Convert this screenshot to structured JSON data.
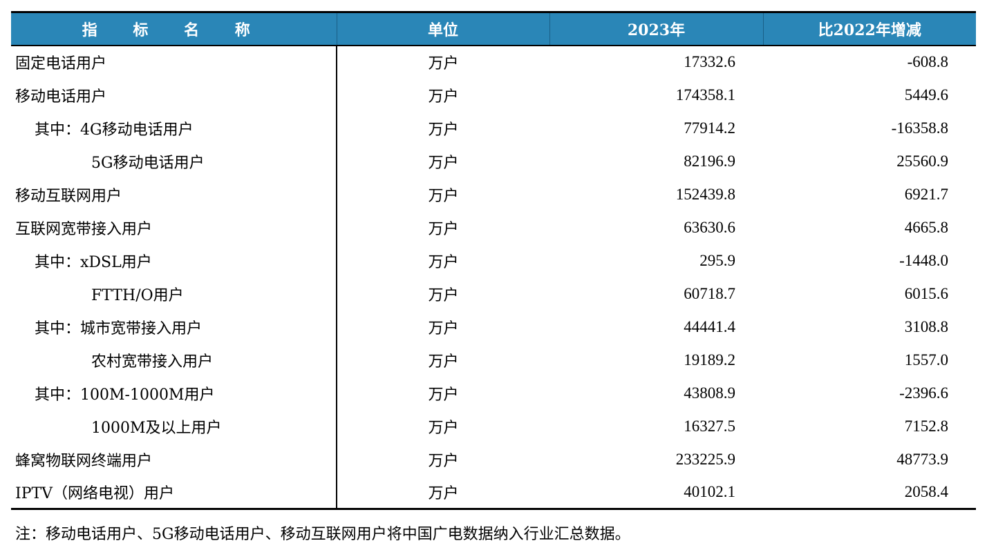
{
  "table": {
    "headers": {
      "name": "指 标 名 称",
      "unit": "单位",
      "year": "2023年",
      "diff": "比2022年增减"
    },
    "rows": [
      {
        "name": "固定电话用户",
        "indent": 0,
        "unit": "万户",
        "v2023": "17332.6",
        "diff": "-608.8"
      },
      {
        "name": "移动电话用户",
        "indent": 0,
        "unit": "万户",
        "v2023": "174358.1",
        "diff": "5449.6"
      },
      {
        "name": "其中：4G移动电话用户",
        "indent": 1,
        "unit": "万户",
        "v2023": "77914.2",
        "diff": "-16358.8"
      },
      {
        "name": "5G移动电话用户",
        "indent": 2,
        "unit": "万户",
        "v2023": "82196.9",
        "diff": "25560.9"
      },
      {
        "name": "移动互联网用户",
        "indent": 0,
        "unit": "万户",
        "v2023": "152439.8",
        "diff": "6921.7"
      },
      {
        "name": "互联网宽带接入用户",
        "indent": 0,
        "unit": "万户",
        "v2023": "63630.6",
        "diff": "4665.8"
      },
      {
        "name": "其中：xDSL用户",
        "indent": 1,
        "unit": "万户",
        "v2023": "295.9",
        "diff": "-1448.0"
      },
      {
        "name": "FTTH/O用户",
        "indent": 2,
        "unit": "万户",
        "v2023": "60718.7",
        "diff": "6015.6"
      },
      {
        "name": "其中：城市宽带接入用户",
        "indent": 1,
        "unit": "万户",
        "v2023": "44441.4",
        "diff": "3108.8"
      },
      {
        "name": "农村宽带接入用户",
        "indent": 2,
        "unit": "万户",
        "v2023": "19189.2",
        "diff": "1557.0"
      },
      {
        "name": "其中：100M-1000M用户",
        "indent": 1,
        "unit": "万户",
        "v2023": "43808.9",
        "diff": "-2396.6"
      },
      {
        "name": "1000M及以上用户",
        "indent": 2,
        "unit": "万户",
        "v2023": "16327.5",
        "diff": "7152.8"
      },
      {
        "name": "蜂窝物联网终端用户",
        "indent": 0,
        "unit": "万户",
        "v2023": "233225.9",
        "diff": "48773.9"
      },
      {
        "name": "IPTV（网络电视）用户",
        "indent": 0,
        "unit": "万户",
        "v2023": "40102.1",
        "diff": "2058.4"
      }
    ]
  },
  "footnote": "注：移动电话用户、5G移动电话用户、移动互联网用户将中国广电数据纳入行业汇总数据。",
  "colors": {
    "header_bg": "#2a86b7",
    "header_text": "#ffffff"
  }
}
